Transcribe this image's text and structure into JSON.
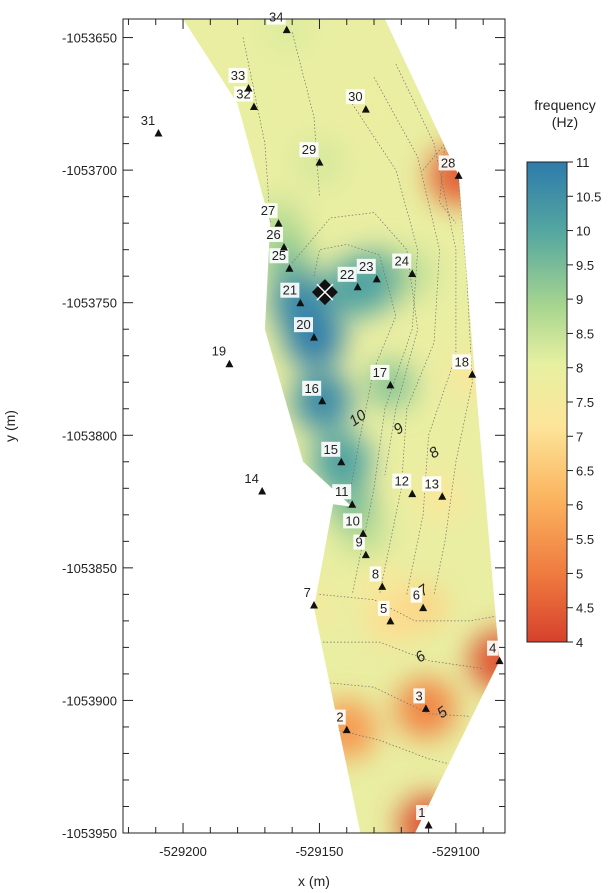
{
  "chart_data": {
    "type": "scatter",
    "plot_kind": "contour map with station points",
    "xlabel": "x (m)",
    "ylabel": "y (m)",
    "xlim": [
      -529222,
      -529082
    ],
    "ylim": [
      -1053950,
      -1053643
    ],
    "x_ticks": [
      -529200,
      -529150,
      -529100
    ],
    "x_tick_labels": [
      "-529200",
      "-529150",
      "-529100"
    ],
    "y_ticks": [
      -1053650,
      -1053700,
      -1053750,
      -1053800,
      -1053850,
      -1053900,
      -1053950
    ],
    "y_tick_labels": [
      "-1053650",
      "-1053700",
      "-1053750",
      "-1053800",
      "-1053850",
      "-1053900",
      "-1053950"
    ],
    "colorbar": {
      "title_line1": "frequency",
      "title_line2": "(Hz)",
      "min": 4,
      "max": 11,
      "ticks": [
        4,
        4.5,
        5,
        5.5,
        6,
        6.5,
        7,
        7.5,
        8,
        8.5,
        9,
        9.5,
        10,
        10.5,
        11
      ],
      "tick_labels": [
        "4",
        "4.5",
        "5",
        "5.5",
        "6",
        "6.5",
        "7",
        "7.5",
        "8",
        "8.5",
        "9",
        "9.5",
        "10",
        "10.5",
        "11"
      ],
      "colors": [
        "#d6412d",
        "#ef7a3f",
        "#fbb45f",
        "#fde59a",
        "#e7f0a1",
        "#a7d58f",
        "#56a8a0",
        "#2e7bab"
      ]
    },
    "contour_labels": [
      {
        "text": "10",
        "x": -529135,
        "y": -1053795
      },
      {
        "text": "9",
        "x": -529120,
        "y": -1053799
      },
      {
        "text": "8",
        "x": -529107,
        "y": -1053808
      },
      {
        "text": "7",
        "x": -529111,
        "y": -1053860
      },
      {
        "text": "6",
        "x": -529112,
        "y": -1053885
      },
      {
        "text": "5",
        "x": -529104,
        "y": -1053906
      }
    ],
    "stations": [
      {
        "id": "1",
        "x": -529110,
        "y": -1053947,
        "f": 4.3
      },
      {
        "id": "2",
        "x": -529140,
        "y": -1053911,
        "f": 5.6
      },
      {
        "id": "3",
        "x": -529111,
        "y": -1053903,
        "f": 5.2
      },
      {
        "id": "4",
        "x": -529084,
        "y": -1053885,
        "f": 4.3
      },
      {
        "id": "5",
        "x": -529124,
        "y": -1053870,
        "f": 7.0
      },
      {
        "id": "6",
        "x": -529112,
        "y": -1053865,
        "f": 6.8
      },
      {
        "id": "7",
        "x": -529152,
        "y": -1053864,
        "f": 7.6
      },
      {
        "id": "8",
        "x": -529127,
        "y": -1053857,
        "f": 7.4
      },
      {
        "id": "9",
        "x": -529133,
        "y": -1053845,
        "f": 8.0
      },
      {
        "id": "10",
        "x": -529134,
        "y": -1053837,
        "f": 8.6
      },
      {
        "id": "11",
        "x": -529138,
        "y": -1053826,
        "f": 9.4
      },
      {
        "id": "12",
        "x": -529116,
        "y": -1053822,
        "f": 7.9
      },
      {
        "id": "13",
        "x": -529105,
        "y": -1053823,
        "f": 7.3
      },
      {
        "id": "14",
        "x": -529171,
        "y": -1053821
      },
      {
        "id": "15",
        "x": -529142,
        "y": -1053810,
        "f": 10.1
      },
      {
        "id": "16",
        "x": -529149,
        "y": -1053787,
        "f": 10.6
      },
      {
        "id": "17",
        "x": -529124,
        "y": -1053781,
        "f": 9.3
      },
      {
        "id": "18",
        "x": -529094,
        "y": -1053777,
        "f": 7.3
      },
      {
        "id": "19",
        "x": -529183,
        "y": -1053773
      },
      {
        "id": "20",
        "x": -529152,
        "y": -1053763,
        "f": 10.9
      },
      {
        "id": "21",
        "x": -529157,
        "y": -1053750,
        "f": 10.6
      },
      {
        "id": "22",
        "x": -529136,
        "y": -1053744,
        "f": 10.1
      },
      {
        "id": "23",
        "x": -529129,
        "y": -1053741,
        "f": 9.6
      },
      {
        "id": "24",
        "x": -529116,
        "y": -1053739,
        "f": 8.5
      },
      {
        "id": "25",
        "x": -529161,
        "y": -1053737,
        "f": 9.4
      },
      {
        "id": "26",
        "x": -529163,
        "y": -1053729,
        "f": 8.9
      },
      {
        "id": "27",
        "x": -529165,
        "y": -1053720,
        "f": 8.6
      },
      {
        "id": "28",
        "x": -529099,
        "y": -1053702,
        "f": 4.5
      },
      {
        "id": "29",
        "x": -529150,
        "y": -1053697,
        "f": 8.3
      },
      {
        "id": "30",
        "x": -529133,
        "y": -1053677,
        "f": 7.8
      },
      {
        "id": "31",
        "x": -529209,
        "y": -1053686
      },
      {
        "id": "32",
        "x": -529174,
        "y": -1053676,
        "f": 8.0
      },
      {
        "id": "33",
        "x": -529176,
        "y": -1053669,
        "f": 8.0
      },
      {
        "id": "34",
        "x": -529162,
        "y": -1053647,
        "f": 8.2
      }
    ],
    "survey_area_polygon": [
      [
        -529200,
        -1053643
      ],
      [
        -529126,
        -1053643
      ],
      [
        -529099,
        -1053702
      ],
      [
        -529093,
        -1053778
      ],
      [
        -529084,
        -1053885
      ],
      [
        -529115,
        -1053950
      ],
      [
        -529135,
        -1053950
      ],
      [
        -529152,
        -1053865
      ],
      [
        -529145,
        -1053826
      ],
      [
        -529138,
        -1053827
      ],
      [
        -529156,
        -1053810
      ],
      [
        -529170,
        -1053760
      ],
      [
        -529168,
        -1053720
      ],
      [
        -529180,
        -1053675
      ]
    ],
    "source_marker": {
      "x": -529148,
      "y": -1053746
    }
  }
}
